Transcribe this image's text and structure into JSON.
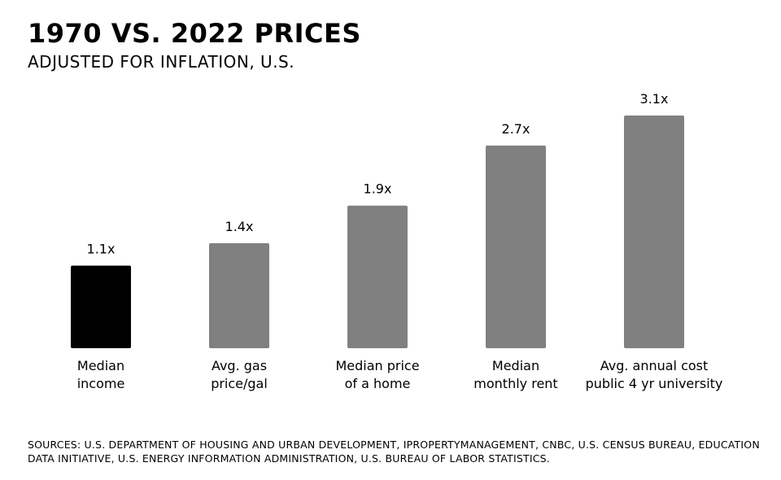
{
  "header": {
    "title": "1970 vs. 2022 Prices",
    "subtitle": "Adjusted for inflation, U.S."
  },
  "chart_data": {
    "type": "bar",
    "title": "1970 vs. 2022 Prices",
    "subtitle": "Adjusted for inflation, U.S.",
    "categories": [
      [
        "Median",
        "income"
      ],
      [
        "Avg. gas",
        "price/gal"
      ],
      [
        "Median price",
        "of a home"
      ],
      [
        "Median",
        "monthly rent"
      ],
      [
        "Avg. annual cost",
        "public 4 yr university"
      ]
    ],
    "values": [
      1.1,
      1.4,
      1.9,
      2.7,
      3.1
    ],
    "value_labels": [
      "1.1x",
      "1.4x",
      "1.9x",
      "2.7x",
      "3.1x"
    ],
    "bar_colors": [
      "#000000",
      "#808080",
      "#808080",
      "#808080",
      "#808080"
    ],
    "ylim": [
      0,
      3.1
    ],
    "grid": false,
    "legend": "none"
  },
  "footer": {
    "sources": "Sources: U.S. Department of Housing and Urban Development, iPropertyManagement, CNBC, U.S. Census Bureau, Education Data Initiative, U.S. Energy Information Administration, U.S. Bureau of Labor Statistics."
  }
}
